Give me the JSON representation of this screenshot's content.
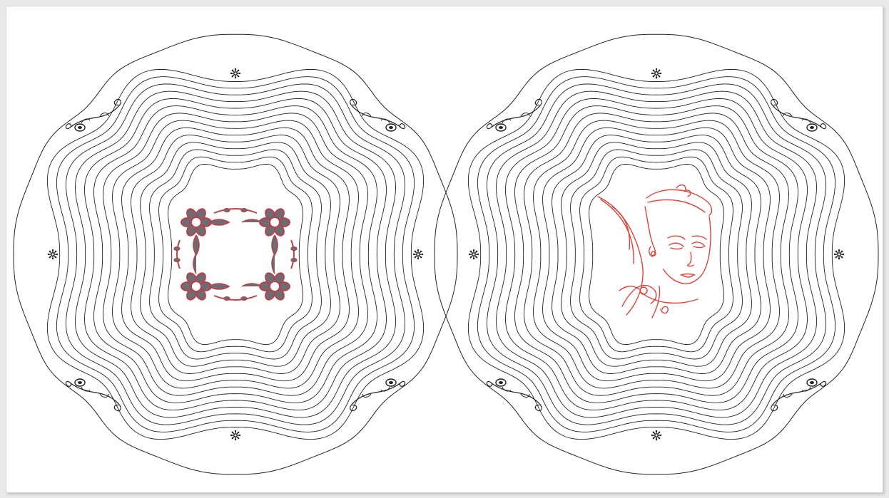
{
  "document": {
    "background": "#ffffff",
    "frame_color": "#d4d4d4"
  },
  "panels": [
    {
      "name": "left-wind-spinner",
      "rings": 14,
      "centerpiece": "floral-lattice-icon",
      "centerpiece_color": "#b5444a",
      "centerpiece_fill": "#6f6b74"
    },
    {
      "name": "right-wind-spinner",
      "rings": 14,
      "centerpiece": "woman-portrait-line-art",
      "centerpiece_color": "#d9443a"
    }
  ],
  "line_color": "#222222",
  "ornaments": {
    "corner": "scroll-flourish-icon",
    "edge": "snowflake-hole-icon"
  }
}
